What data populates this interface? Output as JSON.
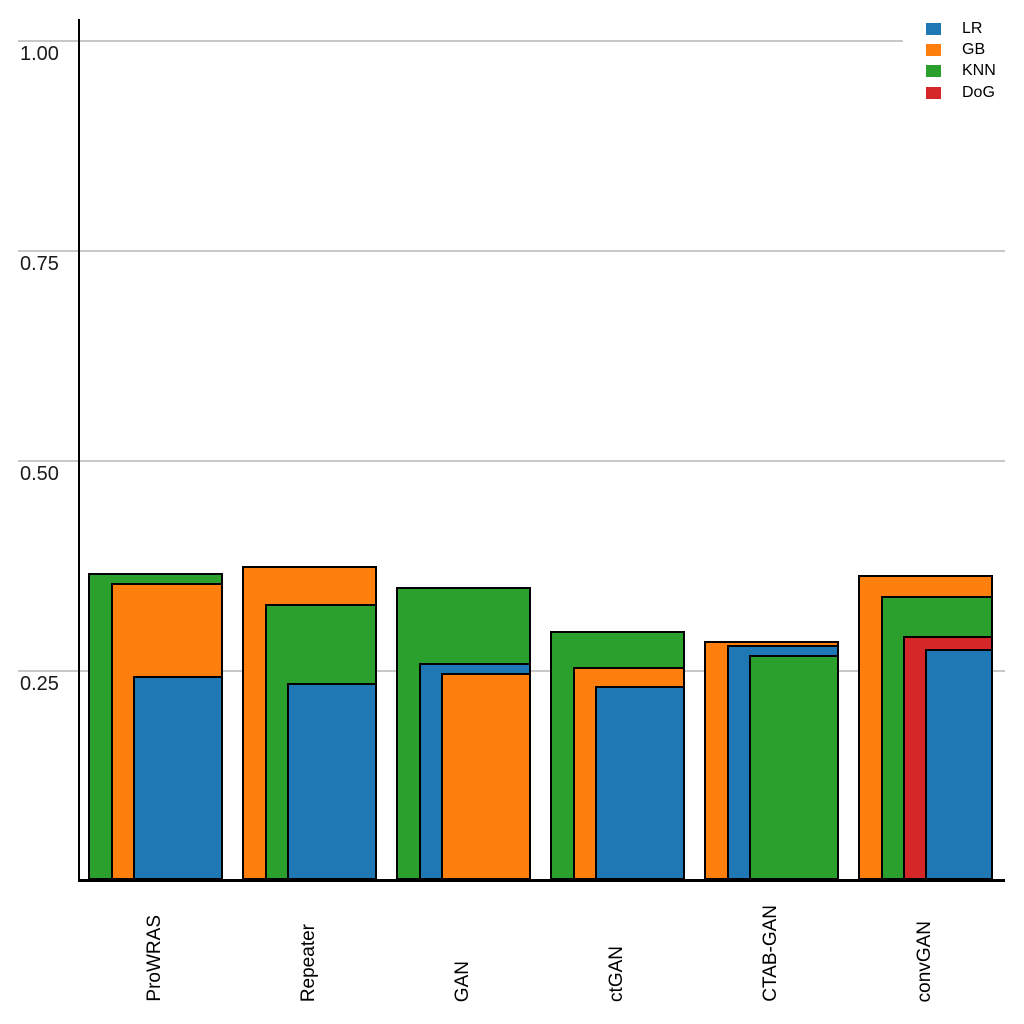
{
  "chart_data": {
    "type": "bar",
    "style": "overlapping-nested-bars",
    "title": "",
    "xlabel": "",
    "ylabel": "",
    "grid": true,
    "grid_color": "#c8c8c8",
    "axis_color": "#000000",
    "bar_edge_color": "#000000",
    "background_color": "#ffffff",
    "legend_position": "top-right",
    "ylim": [
      0,
      1.05
    ],
    "yticks": [
      {
        "value": 0.25,
        "label": "0.25"
      },
      {
        "value": 0.5,
        "label": "0.50"
      },
      {
        "value": 0.75,
        "label": "0.75"
      },
      {
        "value": 1.0,
        "label": "1.00"
      }
    ],
    "categories": [
      "ProWRAS",
      "Repeater",
      "GAN",
      "ctGAN",
      "CTAB-GAN",
      "convGAN"
    ],
    "series": [
      {
        "name": "LR",
        "color": "#1f77b4",
        "values": [
          0.243,
          0.235,
          0.258,
          0.231,
          0.28,
          0.275
        ]
      },
      {
        "name": "GB",
        "color": "#ff7f0e",
        "values": [
          0.353,
          0.374,
          0.247,
          0.253,
          0.285,
          0.363
        ]
      },
      {
        "name": "KNN",
        "color": "#2ca02c",
        "values": [
          0.366,
          0.328,
          0.349,
          0.297,
          0.268,
          0.338
        ]
      },
      {
        "name": "DoG",
        "color": "#d62728",
        "values": [
          null,
          null,
          null,
          null,
          null,
          0.291
        ]
      }
    ]
  }
}
